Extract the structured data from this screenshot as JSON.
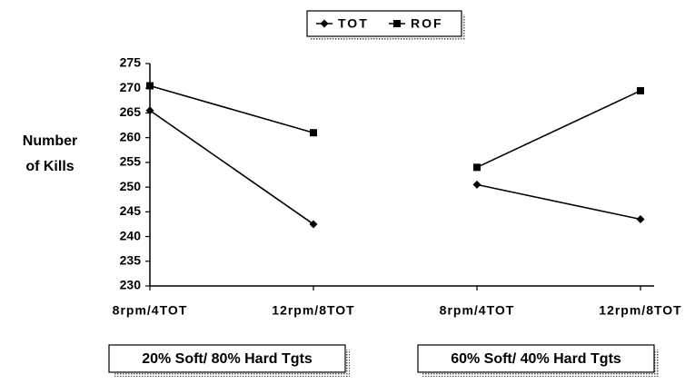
{
  "chart_data": {
    "type": "line",
    "ylabel": [
      "Number",
      "of Kills"
    ],
    "groups": [
      "20% Soft/ 80% Hard Tgts",
      "60% Soft/ 40% Hard Tgts"
    ],
    "categories": [
      [
        "8rpm/4TOT",
        "12rpm/8TOT"
      ],
      [
        "8rpm/4TOT",
        "12rpm/8TOT"
      ]
    ],
    "series": [
      {
        "name": "TOT",
        "color": "#000000",
        "marker": "diamond",
        "values": [
          [
            265.5,
            242.5
          ],
          [
            250.5,
            243.5
          ]
        ]
      },
      {
        "name": "ROF",
        "color": "#000000",
        "marker": "square",
        "values": [
          [
            270.5,
            261
          ],
          [
            254,
            269.5
          ]
        ]
      }
    ],
    "ylim": [
      230,
      275
    ],
    "yticks": [
      230,
      235,
      240,
      245,
      250,
      255,
      260,
      265,
      270,
      275
    ],
    "grid": false,
    "legend": "top"
  }
}
